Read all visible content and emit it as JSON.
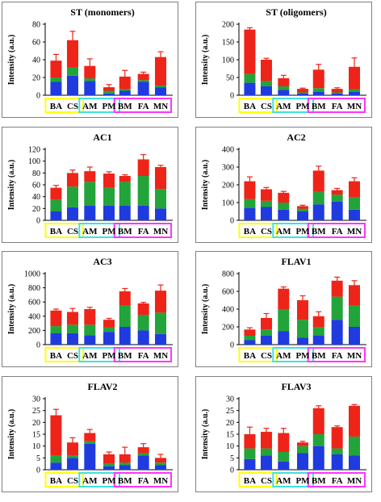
{
  "figure": {
    "background": "#ffffff",
    "border_color": "#808080",
    "colors": {
      "blue": "#1f3be0",
      "green": "#22a43a",
      "red": "#ee2418"
    },
    "group_colors": {
      "yellow": "#ffff00",
      "cyan": "#3fe0e0",
      "magenta": "#ff33ff"
    }
  },
  "chart_data": [
    {
      "type": "bar",
      "stacked": true,
      "title": "ST (monomers)",
      "ylabel": "Intensity (a.u.)",
      "categories": [
        "BA",
        "CS",
        "AM",
        "PM",
        "BM",
        "FA",
        "MN"
      ],
      "groups": [
        {
          "color": "yellow",
          "start": 0,
          "end": 1
        },
        {
          "color": "cyan",
          "start": 2,
          "end": 3
        },
        {
          "color": "magenta",
          "start": 4,
          "end": 6
        }
      ],
      "ylim": [
        0,
        80
      ],
      "yticks": [
        0,
        20,
        40,
        60,
        80
      ],
      "series": [
        {
          "color": "blue",
          "values": [
            15,
            22,
            16,
            2,
            5,
            15,
            9
          ]
        },
        {
          "color": "green",
          "values": [
            5,
            9,
            3,
            3,
            2,
            2,
            2
          ]
        },
        {
          "color": "red",
          "values": [
            19,
            31,
            14,
            4,
            14,
            7,
            32
          ]
        }
      ],
      "errors": [
        7,
        10,
        8,
        3,
        7,
        2,
        6
      ]
    },
    {
      "type": "bar",
      "stacked": true,
      "title": "ST (oligomers)",
      "ylabel": "Intensity (a.u.)",
      "categories": [
        "BA",
        "CS",
        "AM",
        "PM",
        "BM",
        "FA",
        "MN"
      ],
      "groups": [
        {
          "color": "yellow",
          "start": 0,
          "end": 1
        },
        {
          "color": "cyan",
          "start": 2,
          "end": 3
        },
        {
          "color": "magenta",
          "start": 4,
          "end": 6
        }
      ],
      "ylim": [
        0,
        200
      ],
      "yticks": [
        0,
        50,
        100,
        150,
        200
      ],
      "series": [
        {
          "color": "blue",
          "values": [
            35,
            25,
            15,
            5,
            10,
            5,
            10
          ]
        },
        {
          "color": "green",
          "values": [
            25,
            15,
            10,
            3,
            10,
            3,
            7
          ]
        },
        {
          "color": "red",
          "values": [
            125,
            60,
            23,
            10,
            52,
            10,
            63
          ]
        }
      ],
      "errors": [
        5,
        4,
        8,
        2,
        15,
        3,
        25
      ]
    },
    {
      "type": "bar",
      "stacked": true,
      "title": "AC1",
      "ylabel": "Intensity (a.u.)",
      "categories": [
        "BA",
        "CS",
        "AM",
        "PM",
        "BM",
        "FA",
        "MN"
      ],
      "groups": [
        {
          "color": "yellow",
          "start": 0,
          "end": 1
        },
        {
          "color": "cyan",
          "start": 2,
          "end": 3
        },
        {
          "color": "magenta",
          "start": 4,
          "end": 6
        }
      ],
      "ylim": [
        0,
        120
      ],
      "yticks": [
        0,
        20,
        40,
        60,
        80,
        100,
        120
      ],
      "series": [
        {
          "color": "blue",
          "values": [
            15,
            22,
            25,
            25,
            25,
            25,
            20
          ]
        },
        {
          "color": "green",
          "values": [
            20,
            35,
            40,
            30,
            40,
            50,
            33
          ]
        },
        {
          "color": "red",
          "values": [
            20,
            23,
            18,
            24,
            10,
            28,
            37
          ]
        }
      ],
      "errors": [
        4,
        5,
        7,
        3,
        2,
        8,
        3
      ]
    },
    {
      "type": "bar",
      "stacked": true,
      "title": "AC2",
      "ylabel": "Intensity (a.u.)",
      "categories": [
        "BA",
        "CS",
        "AM",
        "PM",
        "BM",
        "FA",
        "MN"
      ],
      "groups": [
        {
          "color": "yellow",
          "start": 0,
          "end": 1
        },
        {
          "color": "cyan",
          "start": 2,
          "end": 3
        },
        {
          "color": "magenta",
          "start": 4,
          "end": 6
        }
      ],
      "ylim": [
        0,
        400
      ],
      "yticks": [
        0,
        100,
        200,
        300,
        400
      ],
      "series": [
        {
          "color": "blue",
          "values": [
            70,
            75,
            60,
            50,
            90,
            105,
            60
          ]
        },
        {
          "color": "green",
          "values": [
            50,
            35,
            40,
            15,
            70,
            40,
            70
          ]
        },
        {
          "color": "red",
          "values": [
            100,
            65,
            55,
            15,
            120,
            25,
            90
          ]
        }
      ],
      "errors": [
        25,
        10,
        8,
        5,
        25,
        10,
        20
      ]
    },
    {
      "type": "bar",
      "stacked": true,
      "title": "AC3",
      "ylabel": "Intensity (a.u.)",
      "categories": [
        "BA",
        "CS",
        "AM",
        "PM",
        "BM",
        "FA",
        "MN"
      ],
      "groups": [
        {
          "color": "yellow",
          "start": 0,
          "end": 1
        },
        {
          "color": "cyan",
          "start": 2,
          "end": 3
        },
        {
          "color": "magenta",
          "start": 4,
          "end": 6
        }
      ],
      "ylim": [
        0,
        1000
      ],
      "yticks": [
        0,
        200,
        400,
        600,
        800,
        1000
      ],
      "series": [
        {
          "color": "blue",
          "values": [
            160,
            160,
            130,
            180,
            250,
            200,
            150
          ]
        },
        {
          "color": "green",
          "values": [
            100,
            120,
            150,
            60,
            300,
            220,
            300
          ]
        },
        {
          "color": "red",
          "values": [
            220,
            180,
            220,
            110,
            200,
            160,
            310
          ]
        }
      ],
      "errors": [
        20,
        50,
        25,
        20,
        40,
        15,
        80
      ]
    },
    {
      "type": "bar",
      "stacked": true,
      "title": "FLAV1",
      "ylabel": "Intensity (a.u.)",
      "categories": [
        "BA",
        "CS",
        "AM",
        "PM",
        "BM",
        "FA",
        "MN"
      ],
      "groups": [
        {
          "color": "yellow",
          "start": 0,
          "end": 1
        },
        {
          "color": "cyan",
          "start": 2,
          "end": 3
        },
        {
          "color": "magenta",
          "start": 4,
          "end": 6
        }
      ],
      "ylim": [
        0,
        800
      ],
      "yticks": [
        0,
        200,
        400,
        600,
        800
      ],
      "series": [
        {
          "color": "blue",
          "values": [
            50,
            100,
            150,
            80,
            100,
            280,
            200
          ]
        },
        {
          "color": "green",
          "values": [
            50,
            70,
            250,
            200,
            100,
            260,
            240
          ]
        },
        {
          "color": "red",
          "values": [
            70,
            130,
            230,
            220,
            120,
            180,
            230
          ]
        }
      ],
      "errors": [
        20,
        50,
        20,
        50,
        50,
        40,
        50
      ]
    },
    {
      "type": "bar",
      "stacked": true,
      "title": "FLAV2",
      "ylabel": "Intensity (a.u.)",
      "categories": [
        "BA",
        "CS",
        "AM",
        "PM",
        "BM",
        "FA",
        "MN"
      ],
      "groups": [
        {
          "color": "yellow",
          "start": 0,
          "end": 1
        },
        {
          "color": "cyan",
          "start": 2,
          "end": 3
        },
        {
          "color": "magenta",
          "start": 4,
          "end": 6
        }
      ],
      "ylim": [
        0,
        30
      ],
      "yticks": [
        0,
        5,
        10,
        15,
        20,
        25,
        30
      ],
      "series": [
        {
          "color": "blue",
          "values": [
            3,
            5,
            11,
            1.5,
            2,
            6,
            2
          ]
        },
        {
          "color": "green",
          "values": [
            3,
            1,
            1,
            1,
            1,
            1,
            1
          ]
        },
        {
          "color": "red",
          "values": [
            17,
            5.5,
            3.5,
            4,
            3.5,
            2.5,
            2
          ]
        }
      ],
      "errors": [
        2.5,
        2,
        1.5,
        1,
        3,
        1.5,
        1.5
      ]
    },
    {
      "type": "bar",
      "stacked": true,
      "title": "FLAV3",
      "ylabel": "Intensity (a.u.)",
      "categories": [
        "BA",
        "CS",
        "AM",
        "PM",
        "BM",
        "FA",
        "MN"
      ],
      "groups": [
        {
          "color": "yellow",
          "start": 0,
          "end": 1
        },
        {
          "color": "cyan",
          "start": 2,
          "end": 3
        },
        {
          "color": "magenta",
          "start": 4,
          "end": 6
        }
      ],
      "ylim": [
        0,
        30
      ],
      "yticks": [
        0,
        5,
        10,
        15,
        20,
        25,
        30
      ],
      "series": [
        {
          "color": "blue",
          "values": [
            4.5,
            6,
            3.5,
            7,
            10,
            6.5,
            6
          ]
        },
        {
          "color": "green",
          "values": [
            4.5,
            3,
            4,
            3,
            5,
            2.5,
            8
          ]
        },
        {
          "color": "red",
          "values": [
            6,
            7,
            8,
            1.5,
            11,
            9,
            13
          ]
        }
      ],
      "errors": [
        3,
        1.5,
        2,
        0.5,
        1,
        0.5,
        0.5
      ]
    }
  ]
}
